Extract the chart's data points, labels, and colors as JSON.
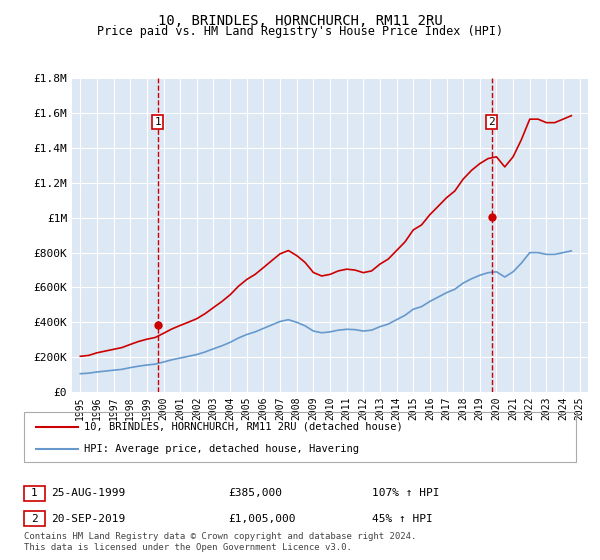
{
  "title": "10, BRINDLES, HORNCHURCH, RM11 2RU",
  "subtitle": "Price paid vs. HM Land Registry's House Price Index (HPI)",
  "legend_line1": "10, BRINDLES, HORNCHURCH, RM11 2RU (detached house)",
  "legend_line2": "HPI: Average price, detached house, Havering",
  "annotation1_label": "1",
  "annotation1_date": "25-AUG-1999",
  "annotation1_price": "£385,000",
  "annotation1_hpi": "107% ↑ HPI",
  "annotation2_label": "2",
  "annotation2_date": "20-SEP-2019",
  "annotation2_price": "£1,005,000",
  "annotation2_hpi": "45% ↑ HPI",
  "footnote": "Contains HM Land Registry data © Crown copyright and database right 2024.\nThis data is licensed under the Open Government Licence v3.0.",
  "sale1_year": 1999.65,
  "sale1_price": 385000,
  "sale2_year": 2019.72,
  "sale2_price": 1005000,
  "ylim": [
    0,
    1800000
  ],
  "xlim": [
    1994.5,
    2025.5
  ],
  "yticks": [
    0,
    200000,
    400000,
    600000,
    800000,
    1000000,
    1200000,
    1400000,
    1600000,
    1800000
  ],
  "ytick_labels": [
    "£0",
    "£200K",
    "£400K",
    "£600K",
    "£800K",
    "£1M",
    "£1.2M",
    "£1.4M",
    "£1.6M",
    "£1.8M"
  ],
  "xticks": [
    1995,
    1996,
    1997,
    1998,
    1999,
    2000,
    2001,
    2002,
    2003,
    2004,
    2005,
    2006,
    2007,
    2008,
    2009,
    2010,
    2011,
    2012,
    2013,
    2014,
    2015,
    2016,
    2017,
    2018,
    2019,
    2020,
    2021,
    2022,
    2023,
    2024,
    2025
  ],
  "background_color": "#dde8f5",
  "plot_background": "#dde8f5",
  "red_color": "#cc0000",
  "blue_color": "#6699cc",
  "grid_color": "#ffffff",
  "hpi_years": [
    1995,
    1995.5,
    1996,
    1996.5,
    1997,
    1997.5,
    1998,
    1998.5,
    1999,
    1999.5,
    2000,
    2000.5,
    2001,
    2001.5,
    2002,
    2002.5,
    2003,
    2003.5,
    2004,
    2004.5,
    2005,
    2005.5,
    2006,
    2006.5,
    2007,
    2007.5,
    2008,
    2008.5,
    2009,
    2009.5,
    2010,
    2010.5,
    2011,
    2011.5,
    2012,
    2012.5,
    2013,
    2013.5,
    2014,
    2014.5,
    2015,
    2015.5,
    2016,
    2016.5,
    2017,
    2017.5,
    2018,
    2018.5,
    2019,
    2019.5,
    2020,
    2020.5,
    2021,
    2021.5,
    2022,
    2022.5,
    2023,
    2023.5,
    2024,
    2024.5
  ],
  "hpi_values": [
    105000,
    108000,
    115000,
    120000,
    125000,
    130000,
    140000,
    148000,
    155000,
    160000,
    172000,
    185000,
    195000,
    205000,
    215000,
    230000,
    248000,
    265000,
    285000,
    310000,
    330000,
    345000,
    365000,
    385000,
    405000,
    415000,
    400000,
    380000,
    350000,
    340000,
    345000,
    355000,
    360000,
    358000,
    350000,
    355000,
    375000,
    390000,
    415000,
    440000,
    475000,
    490000,
    520000,
    545000,
    570000,
    590000,
    625000,
    650000,
    670000,
    685000,
    690000,
    660000,
    690000,
    740000,
    800000,
    800000,
    790000,
    790000,
    800000,
    810000
  ],
  "red_years": [
    1995,
    1995.5,
    1996,
    1996.5,
    1997,
    1997.5,
    1998,
    1998.5,
    1999,
    1999.5,
    2000,
    2000.5,
    2001,
    2001.5,
    2002,
    2002.5,
    2003,
    2003.5,
    2004,
    2004.5,
    2005,
    2005.5,
    2006,
    2006.5,
    2007,
    2007.5,
    2008,
    2008.5,
    2009,
    2009.5,
    2010,
    2010.5,
    2011,
    2011.5,
    2012,
    2012.5,
    2013,
    2013.5,
    2014,
    2014.5,
    2015,
    2015.5,
    2016,
    2016.5,
    2017,
    2017.5,
    2018,
    2018.5,
    2019,
    2019.5,
    2020,
    2020.5,
    2021,
    2021.5,
    2022,
    2022.5,
    2023,
    2023.5,
    2024,
    2024.5
  ],
  "red_values": [
    205000,
    210000,
    225000,
    235000,
    245000,
    255000,
    273000,
    290000,
    303000,
    313000,
    337000,
    362000,
    382000,
    401000,
    421000,
    450000,
    485000,
    519000,
    558000,
    607000,
    646000,
    675000,
    714000,
    754000,
    793000,
    812000,
    783000,
    744000,
    686000,
    666000,
    675000,
    695000,
    705000,
    700000,
    685000,
    695000,
    734000,
    763000,
    812000,
    861000,
    930000,
    959000,
    1018000,
    1066000,
    1115000,
    1154000,
    1222000,
    1272000,
    1311000,
    1340000,
    1350000,
    1292000,
    1350000,
    1449000,
    1566000,
    1566000,
    1546000,
    1546000,
    1566000,
    1586000
  ],
  "sale1_red_value": 385000,
  "sale2_red_value": 1005000
}
